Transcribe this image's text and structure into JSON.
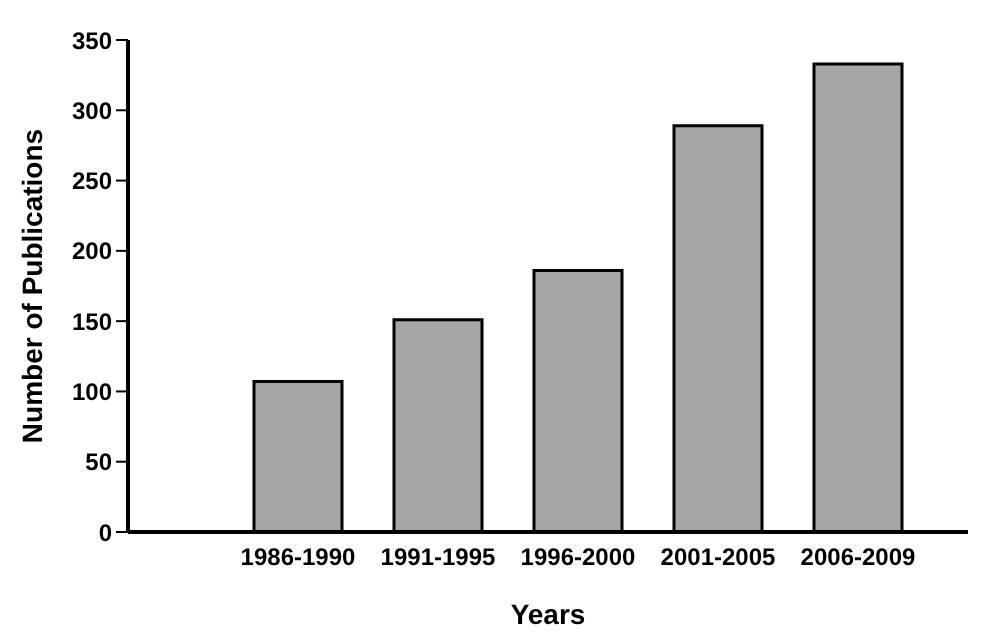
{
  "chart_data": {
    "type": "bar",
    "xlabel": "Years",
    "ylabel": "Number of Publications",
    "categories": [
      "1986-1990",
      "1991-1995",
      "1996-2000",
      "2001-2005",
      "2006-2009"
    ],
    "values": [
      107,
      151,
      186,
      289,
      333
    ],
    "color": "#a6a6a6",
    "ylim": [
      0,
      350
    ],
    "yticks": [
      0,
      50,
      100,
      150,
      200,
      250,
      300,
      350
    ],
    "grid": false
  }
}
